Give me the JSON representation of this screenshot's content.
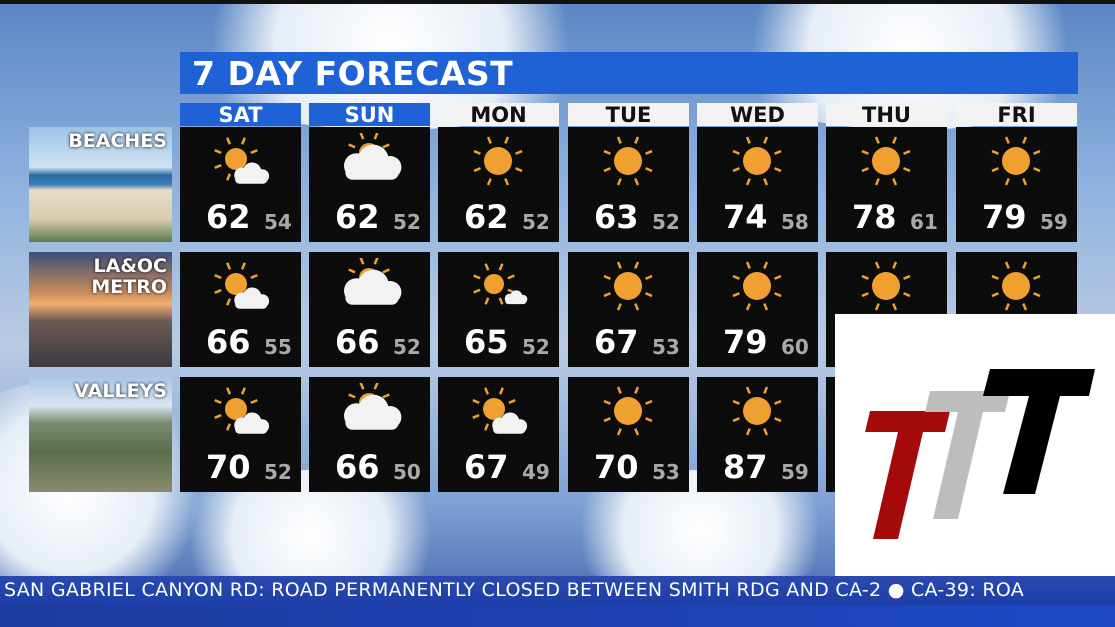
{
  "title": "7 DAY FORECAST",
  "days": [
    {
      "label": "SAT",
      "highlight": true
    },
    {
      "label": "SUN",
      "highlight": true
    },
    {
      "label": "MON",
      "highlight": false
    },
    {
      "label": "TUE",
      "highlight": false
    },
    {
      "label": "WED",
      "highlight": false
    },
    {
      "label": "THU",
      "highlight": false
    },
    {
      "label": "FRI",
      "highlight": false
    }
  ],
  "regions": [
    {
      "label": "BEACHES",
      "forecast": [
        {
          "icon": "partly-sunny",
          "hi": "62",
          "lo": "54"
        },
        {
          "icon": "mostly-cloudy",
          "hi": "62",
          "lo": "52"
        },
        {
          "icon": "sunny",
          "hi": "62",
          "lo": "52"
        },
        {
          "icon": "sunny",
          "hi": "63",
          "lo": "52"
        },
        {
          "icon": "sunny",
          "hi": "74",
          "lo": "58"
        },
        {
          "icon": "sunny",
          "hi": "78",
          "lo": "61"
        },
        {
          "icon": "sunny",
          "hi": "79",
          "lo": "59"
        }
      ]
    },
    {
      "label": "LA&OC METRO",
      "forecast": [
        {
          "icon": "partly-sunny",
          "hi": "66",
          "lo": "55"
        },
        {
          "icon": "mostly-cloudy",
          "hi": "66",
          "lo": "52"
        },
        {
          "icon": "partly-sunny-small",
          "hi": "65",
          "lo": "52"
        },
        {
          "icon": "sunny",
          "hi": "67",
          "lo": "53"
        },
        {
          "icon": "sunny",
          "hi": "79",
          "lo": "60"
        },
        {
          "icon": "sunny",
          "hi": "",
          "lo": ""
        },
        {
          "icon": "sunny",
          "hi": "",
          "lo": ""
        }
      ]
    },
    {
      "label": "VALLEYS",
      "forecast": [
        {
          "icon": "partly-sunny",
          "hi": "70",
          "lo": "52"
        },
        {
          "icon": "mostly-cloudy",
          "hi": "66",
          "lo": "50"
        },
        {
          "icon": "partly-sunny",
          "hi": "67",
          "lo": "49"
        },
        {
          "icon": "sunny",
          "hi": "70",
          "lo": "53"
        },
        {
          "icon": "sunny",
          "hi": "87",
          "lo": "59"
        },
        {
          "icon": "sunny",
          "hi": "",
          "lo": ""
        },
        {
          "icon": "sunny",
          "hi": "",
          "lo": ""
        }
      ]
    }
  ],
  "ticker": "SAN GABRIEL CANYON RD: ROAD PERMANENTLY CLOSED BETWEEN SMITH RDG AND CA-2  ●  CA-39: ROA",
  "logo": {
    "text": "TTT",
    "colors": [
      "#a50a0a",
      "#bdbdbd",
      "#000000"
    ]
  },
  "colors": {
    "accent": "#1e62d6",
    "sun": "#f0a030"
  }
}
